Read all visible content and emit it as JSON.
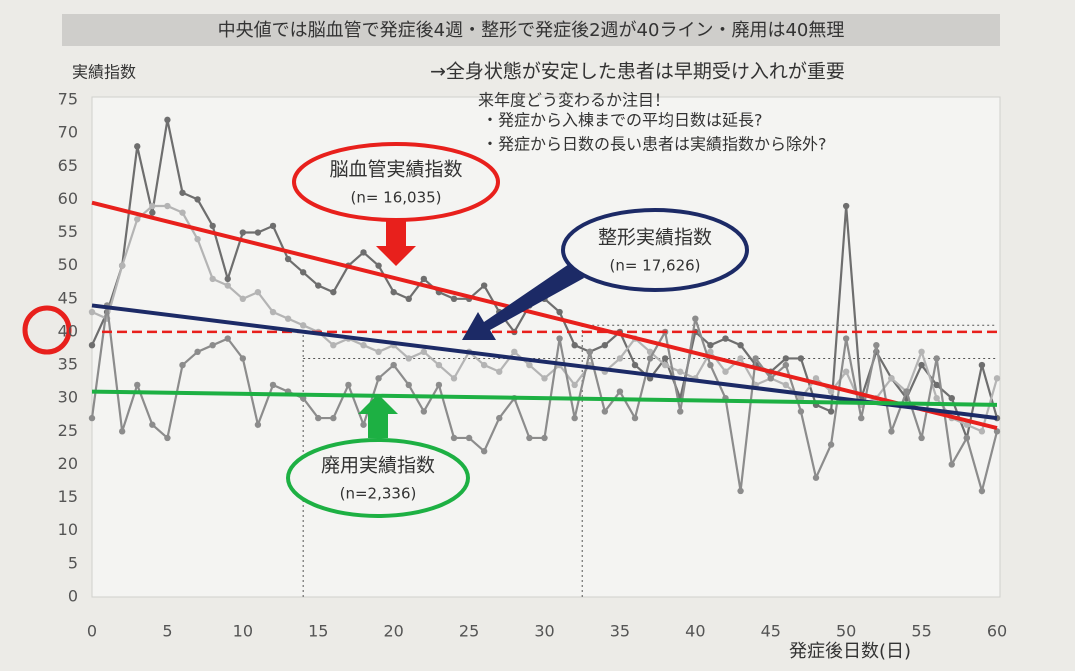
{
  "chart_data": {
    "type": "line",
    "title": "中央値では脳血管で発症後4週・整形で発症後2週が40ライン・廃用は40無理",
    "ylabel": "実績指数",
    "xlabel": "発症後日数(日)",
    "annotations": [
      "→全身状態が安定した患者は早期受け入れが重要",
      "来年度どう変わるか注目！",
      "・発症から入棟までの平均日数は延長?",
      "・発症から日数の長い患者は実績指数から除外?"
    ],
    "x": [
      0,
      1,
      2,
      3,
      4,
      5,
      6,
      7,
      8,
      9,
      10,
      11,
      12,
      13,
      14,
      15,
      16,
      17,
      18,
      19,
      20,
      21,
      22,
      23,
      24,
      25,
      26,
      27,
      28,
      29,
      30,
      31,
      32,
      33,
      34,
      35,
      36,
      37,
      38,
      39,
      40,
      41,
      42,
      43,
      44,
      45,
      46,
      47,
      48,
      49,
      50,
      51,
      52,
      53,
      54,
      55,
      56,
      57,
      58,
      59,
      60
    ],
    "series": [
      {
        "color": "#6e6e6e",
        "values": [
          38,
          43,
          50,
          68,
          58,
          72,
          61,
          60,
          56,
          48,
          55,
          55,
          56,
          51,
          49,
          47,
          46,
          50,
          52,
          50,
          46,
          45,
          48,
          46,
          45,
          45,
          47,
          43,
          40,
          44,
          45,
          43,
          38,
          37,
          38,
          40,
          35,
          33,
          36,
          30,
          40,
          38,
          39,
          38,
          35,
          34,
          36,
          36,
          29,
          28,
          59,
          30,
          37,
          33,
          30,
          35,
          32,
          30,
          24,
          35,
          27
        ]
      },
      {
        "color": "#b4b4b4",
        "values": [
          43,
          42,
          50,
          57,
          59,
          59,
          58,
          54,
          48,
          47,
          45,
          46,
          43,
          42,
          41,
          40,
          38,
          39,
          38,
          37,
          38,
          36,
          37,
          35,
          33,
          37,
          35,
          34,
          37,
          35,
          33,
          35,
          32,
          35,
          34,
          36,
          39,
          37,
          35,
          34,
          33,
          37,
          34,
          36,
          32,
          33,
          32,
          30,
          33,
          31,
          34,
          29,
          30,
          33,
          31,
          37,
          30,
          27,
          26,
          25,
          33
        ]
      },
      {
        "color": "#8c8c8c",
        "values": [
          27,
          44,
          25,
          32,
          26,
          24,
          35,
          37,
          38,
          39,
          36,
          26,
          32,
          31,
          30,
          27,
          27,
          32,
          26,
          33,
          35,
          32,
          28,
          32,
          24,
          24,
          22,
          27,
          30,
          24,
          24,
          39,
          27,
          37,
          28,
          31,
          27,
          36,
          40,
          28,
          42,
          35,
          30,
          16,
          36,
          33,
          35,
          28,
          18,
          23,
          39,
          27,
          38,
          25,
          31,
          24,
          36,
          20,
          24,
          16,
          25
        ]
      }
    ],
    "trend_lines": [
      {
        "color": "#e8201c",
        "x": [
          0,
          60
        ],
        "values": [
          59.5,
          25.5
        ]
      },
      {
        "color": "#1c2a66",
        "x": [
          0,
          60
        ],
        "values": [
          44,
          27
        ]
      },
      {
        "color": "#1db043",
        "x": [
          0,
          60
        ],
        "values": [
          31,
          29
        ]
      }
    ],
    "target_line": {
      "value": 40,
      "color": "#e8201c"
    },
    "guide_lines": {
      "x": [
        14,
        32.5
      ],
      "y": [
        41,
        36
      ]
    },
    "callouts": [
      {
        "label": "脳血管実績指数",
        "n": "(n= 16,035)",
        "color": "#e8201c"
      },
      {
        "label": "整形実績指数",
        "n": "(n= 17,626)",
        "color": "#1c2a66"
      },
      {
        "label": "廃用実績指数",
        "n": "(n=2,336)",
        "color": "#1db043"
      }
    ],
    "xlim": [
      0,
      60
    ],
    "ylim": [
      0,
      75
    ],
    "xticks": [
      0,
      5,
      10,
      15,
      20,
      25,
      30,
      35,
      40,
      45,
      50,
      55,
      60
    ],
    "yticks": [
      0,
      5,
      10,
      15,
      20,
      25,
      30,
      35,
      40,
      45,
      50,
      55,
      60,
      65,
      70,
      75
    ]
  }
}
